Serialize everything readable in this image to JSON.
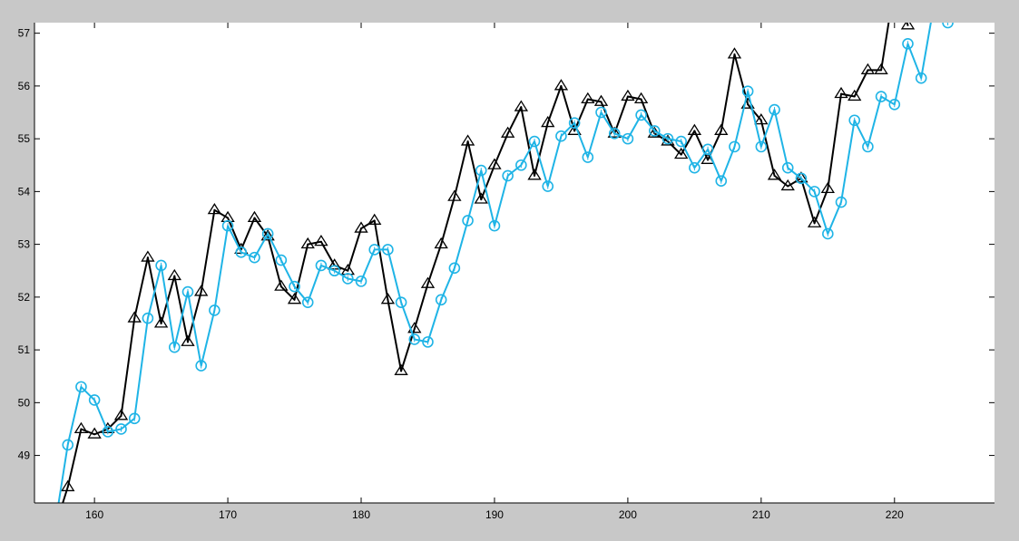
{
  "chart_data": {
    "type": "line",
    "title": "",
    "xlabel": "",
    "ylabel": "",
    "xlim": [
      155.5,
      227.5
    ],
    "ylim": [
      48.1,
      57.2
    ],
    "x_ticks": [
      160,
      170,
      180,
      190,
      200,
      210,
      220
    ],
    "y_ticks": [
      49,
      50,
      51,
      52,
      53,
      54,
      55,
      56,
      57
    ],
    "grid": false,
    "legend": "none",
    "background": "#c8c8c8",
    "plot_background": "#ffffff",
    "series": [
      {
        "marker": "triangle",
        "color": "#000000",
        "x": [
          157,
          158,
          159,
          160,
          161,
          162,
          163,
          164,
          165,
          166,
          167,
          168,
          169,
          170,
          171,
          172,
          173,
          174,
          175,
          176,
          177,
          178,
          179,
          180,
          181,
          182,
          183,
          184,
          185,
          186,
          187,
          188,
          189,
          190,
          191,
          192,
          193,
          194,
          195,
          196,
          197,
          198,
          199,
          200,
          201,
          202,
          203,
          204,
          205,
          206,
          207,
          208,
          209,
          210,
          211,
          212,
          213,
          214,
          215,
          216,
          217,
          218,
          219,
          220,
          221
        ],
        "y": [
          47.6,
          48.4,
          49.5,
          49.4,
          49.5,
          49.75,
          51.6,
          52.75,
          51.5,
          52.4,
          51.15,
          52.1,
          53.65,
          53.5,
          52.9,
          53.5,
          53.15,
          52.2,
          51.95,
          53.0,
          53.05,
          52.6,
          52.5,
          53.3,
          53.45,
          51.95,
          50.6,
          51.4,
          52.25,
          53.0,
          53.9,
          54.95,
          53.85,
          54.5,
          55.1,
          55.6,
          54.3,
          55.3,
          56.0,
          55.15,
          55.75,
          55.7,
          55.1,
          55.8,
          55.75,
          55.1,
          54.95,
          54.7,
          55.15,
          54.6,
          55.15,
          56.6,
          55.65,
          55.35,
          54.3,
          54.1,
          54.25,
          53.4,
          54.05,
          55.85,
          55.8,
          56.3,
          56.3,
          57.9,
          57.15
        ]
      },
      {
        "marker": "circle",
        "color": "#1fb4e6",
        "x": [
          157,
          158,
          159,
          160,
          161,
          162,
          163,
          164,
          165,
          166,
          167,
          168,
          169,
          170,
          171,
          172,
          173,
          174,
          175,
          176,
          177,
          178,
          179,
          180,
          181,
          182,
          183,
          184,
          185,
          186,
          187,
          188,
          189,
          190,
          191,
          192,
          193,
          194,
          195,
          196,
          197,
          198,
          199,
          200,
          201,
          202,
          203,
          204,
          205,
          206,
          207,
          208,
          209,
          210,
          211,
          212,
          213,
          214,
          215,
          216,
          217,
          218,
          219,
          220,
          221,
          222,
          223,
          224
        ],
        "y": [
          47.6,
          49.2,
          50.3,
          50.05,
          49.45,
          49.5,
          49.7,
          51.6,
          52.6,
          51.05,
          52.1,
          50.7,
          51.75,
          53.35,
          52.85,
          52.75,
          53.2,
          52.7,
          52.2,
          51.9,
          52.6,
          52.5,
          52.35,
          52.3,
          52.9,
          52.9,
          51.9,
          51.2,
          51.15,
          51.95,
          52.55,
          53.45,
          54.4,
          53.35,
          54.3,
          54.5,
          54.95,
          54.1,
          55.05,
          55.3,
          54.65,
          55.5,
          55.1,
          55.0,
          55.45,
          55.15,
          55.0,
          54.95,
          54.45,
          54.8,
          54.2,
          54.85,
          55.9,
          54.85,
          55.55,
          54.45,
          54.25,
          54.0,
          53.2,
          53.8,
          55.35,
          54.85,
          55.8,
          55.65,
          56.8,
          56.15,
          57.6,
          57.2
        ]
      }
    ]
  }
}
